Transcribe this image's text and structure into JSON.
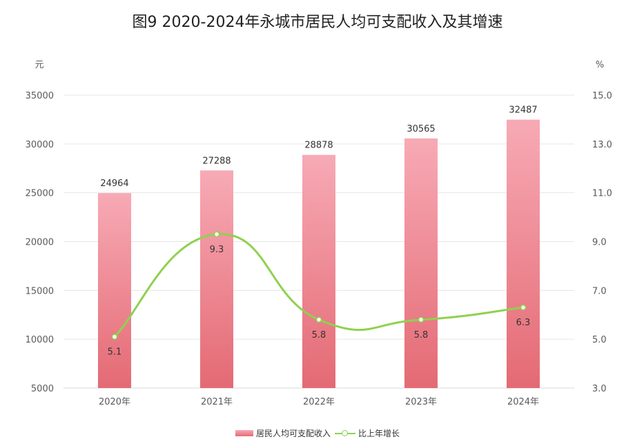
{
  "chart_data": {
    "type": "bar",
    "title": "图9  2020-2024年永城市居民人均可支配收入及其增速",
    "categories": [
      "2020年",
      "2021年",
      "2022年",
      "2023年",
      "2024年"
    ],
    "series": [
      {
        "name": "居民人均可支配收入",
        "type": "bar",
        "axis": "left",
        "values": [
          24964,
          27288,
          28878,
          30565,
          32487
        ],
        "labels": [
          "24964",
          "27288",
          "28878",
          "30565",
          "32487"
        ]
      },
      {
        "name": "比上年增长",
        "type": "line",
        "axis": "right",
        "values": [
          5.1,
          9.3,
          5.8,
          5.8,
          6.3
        ],
        "labels": [
          "5.1",
          "9.3",
          "5.8",
          "5.8",
          "6.3"
        ]
      }
    ],
    "y_left": {
      "unit": "元",
      "range": [
        5000,
        35000
      ],
      "ticks": [
        "5000",
        "10000",
        "15000",
        "20000",
        "25000",
        "30000",
        "35000"
      ]
    },
    "y_right": {
      "unit": "%",
      "range": [
        3.0,
        15.0
      ],
      "ticks": [
        "3.0",
        "5.0",
        "7.0",
        "9.0",
        "11.0",
        "13.0",
        "15.0"
      ]
    },
    "grid": true,
    "legend_position": "bottom",
    "colors": {
      "bar_top": "#f7aab5",
      "bar_bottom": "#e46a74",
      "line": "#8fd14f",
      "grid": "#e6e6e6"
    }
  }
}
